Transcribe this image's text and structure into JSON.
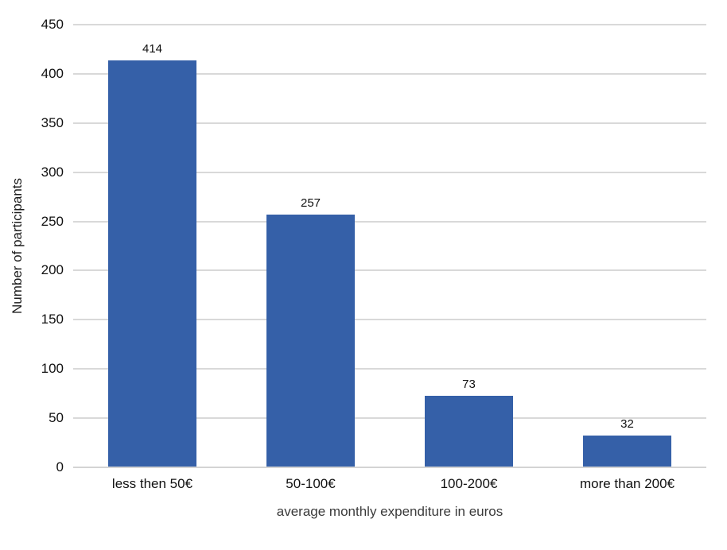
{
  "chart_data": {
    "type": "bar",
    "title": "",
    "categories": [
      "less then 50€",
      "50-100€",
      "100-200€",
      "more than 200€"
    ],
    "values": [
      414,
      257,
      73,
      32
    ],
    "xlabel": "average monthly expenditure in euros",
    "ylabel": "Number of participants",
    "ylim": [
      0,
      450
    ],
    "yticks": [
      0,
      50,
      100,
      150,
      200,
      250,
      300,
      350,
      400,
      450
    ],
    "grid": true,
    "legend": false,
    "bar_color": "#3560A8",
    "gridline_color": "#D9D9D9",
    "baseline_color": "#D4D4D4",
    "text_color": "#111111",
    "axis_title_color": "#3B3B3B"
  }
}
